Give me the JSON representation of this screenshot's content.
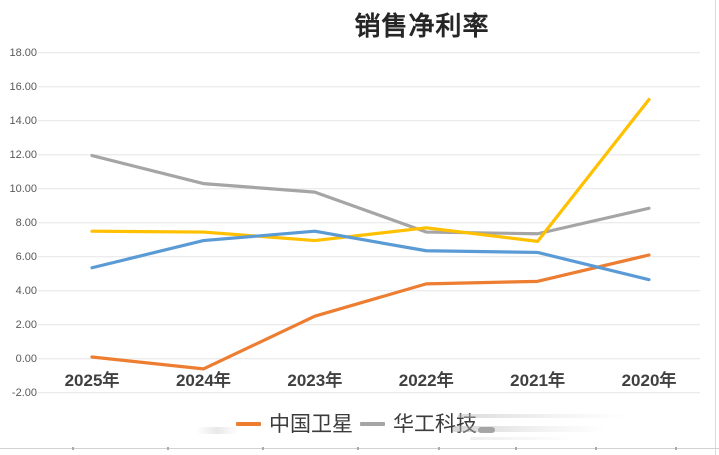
{
  "chart_data": {
    "type": "line",
    "title": "销售净利率",
    "categories": [
      "2025年",
      "2024年",
      "2023年",
      "2022年",
      "2021年",
      "2020年"
    ],
    "series": [
      {
        "name": "中国卫星",
        "color": "#ED7D31",
        "values": [
          0.1,
          -0.6,
          2.5,
          4.4,
          4.55,
          6.1
        ]
      },
      {
        "name": "华工科技",
        "color": "#A5A5A5",
        "values": [
          11.95,
          10.3,
          9.8,
          7.45,
          7.35,
          8.85
        ]
      },
      {
        "name": "",
        "color": "#FFC000",
        "values": [
          7.5,
          7.45,
          6.95,
          7.7,
          6.9,
          15.25
        ]
      },
      {
        "name": "",
        "color": "#5B9BD5",
        "values": [
          5.35,
          6.95,
          7.5,
          6.35,
          6.25,
          4.65
        ]
      }
    ],
    "ylim": [
      -2,
      18
    ],
    "ytick_labels": [
      "18.00",
      "16.00",
      "14.00",
      "12.00",
      "10.00",
      "8.00",
      "6.00",
      "4.00",
      "2.00",
      "0.00",
      "-2.00"
    ],
    "grid": true,
    "gridline_color": "#e6e6e6",
    "legend_position": "bottom"
  },
  "legend": {
    "entries": [
      {
        "label": "中国卫星",
        "color": "#ED7D31"
      },
      {
        "label": "华工科技",
        "color": "#A5A5A5"
      }
    ]
  }
}
